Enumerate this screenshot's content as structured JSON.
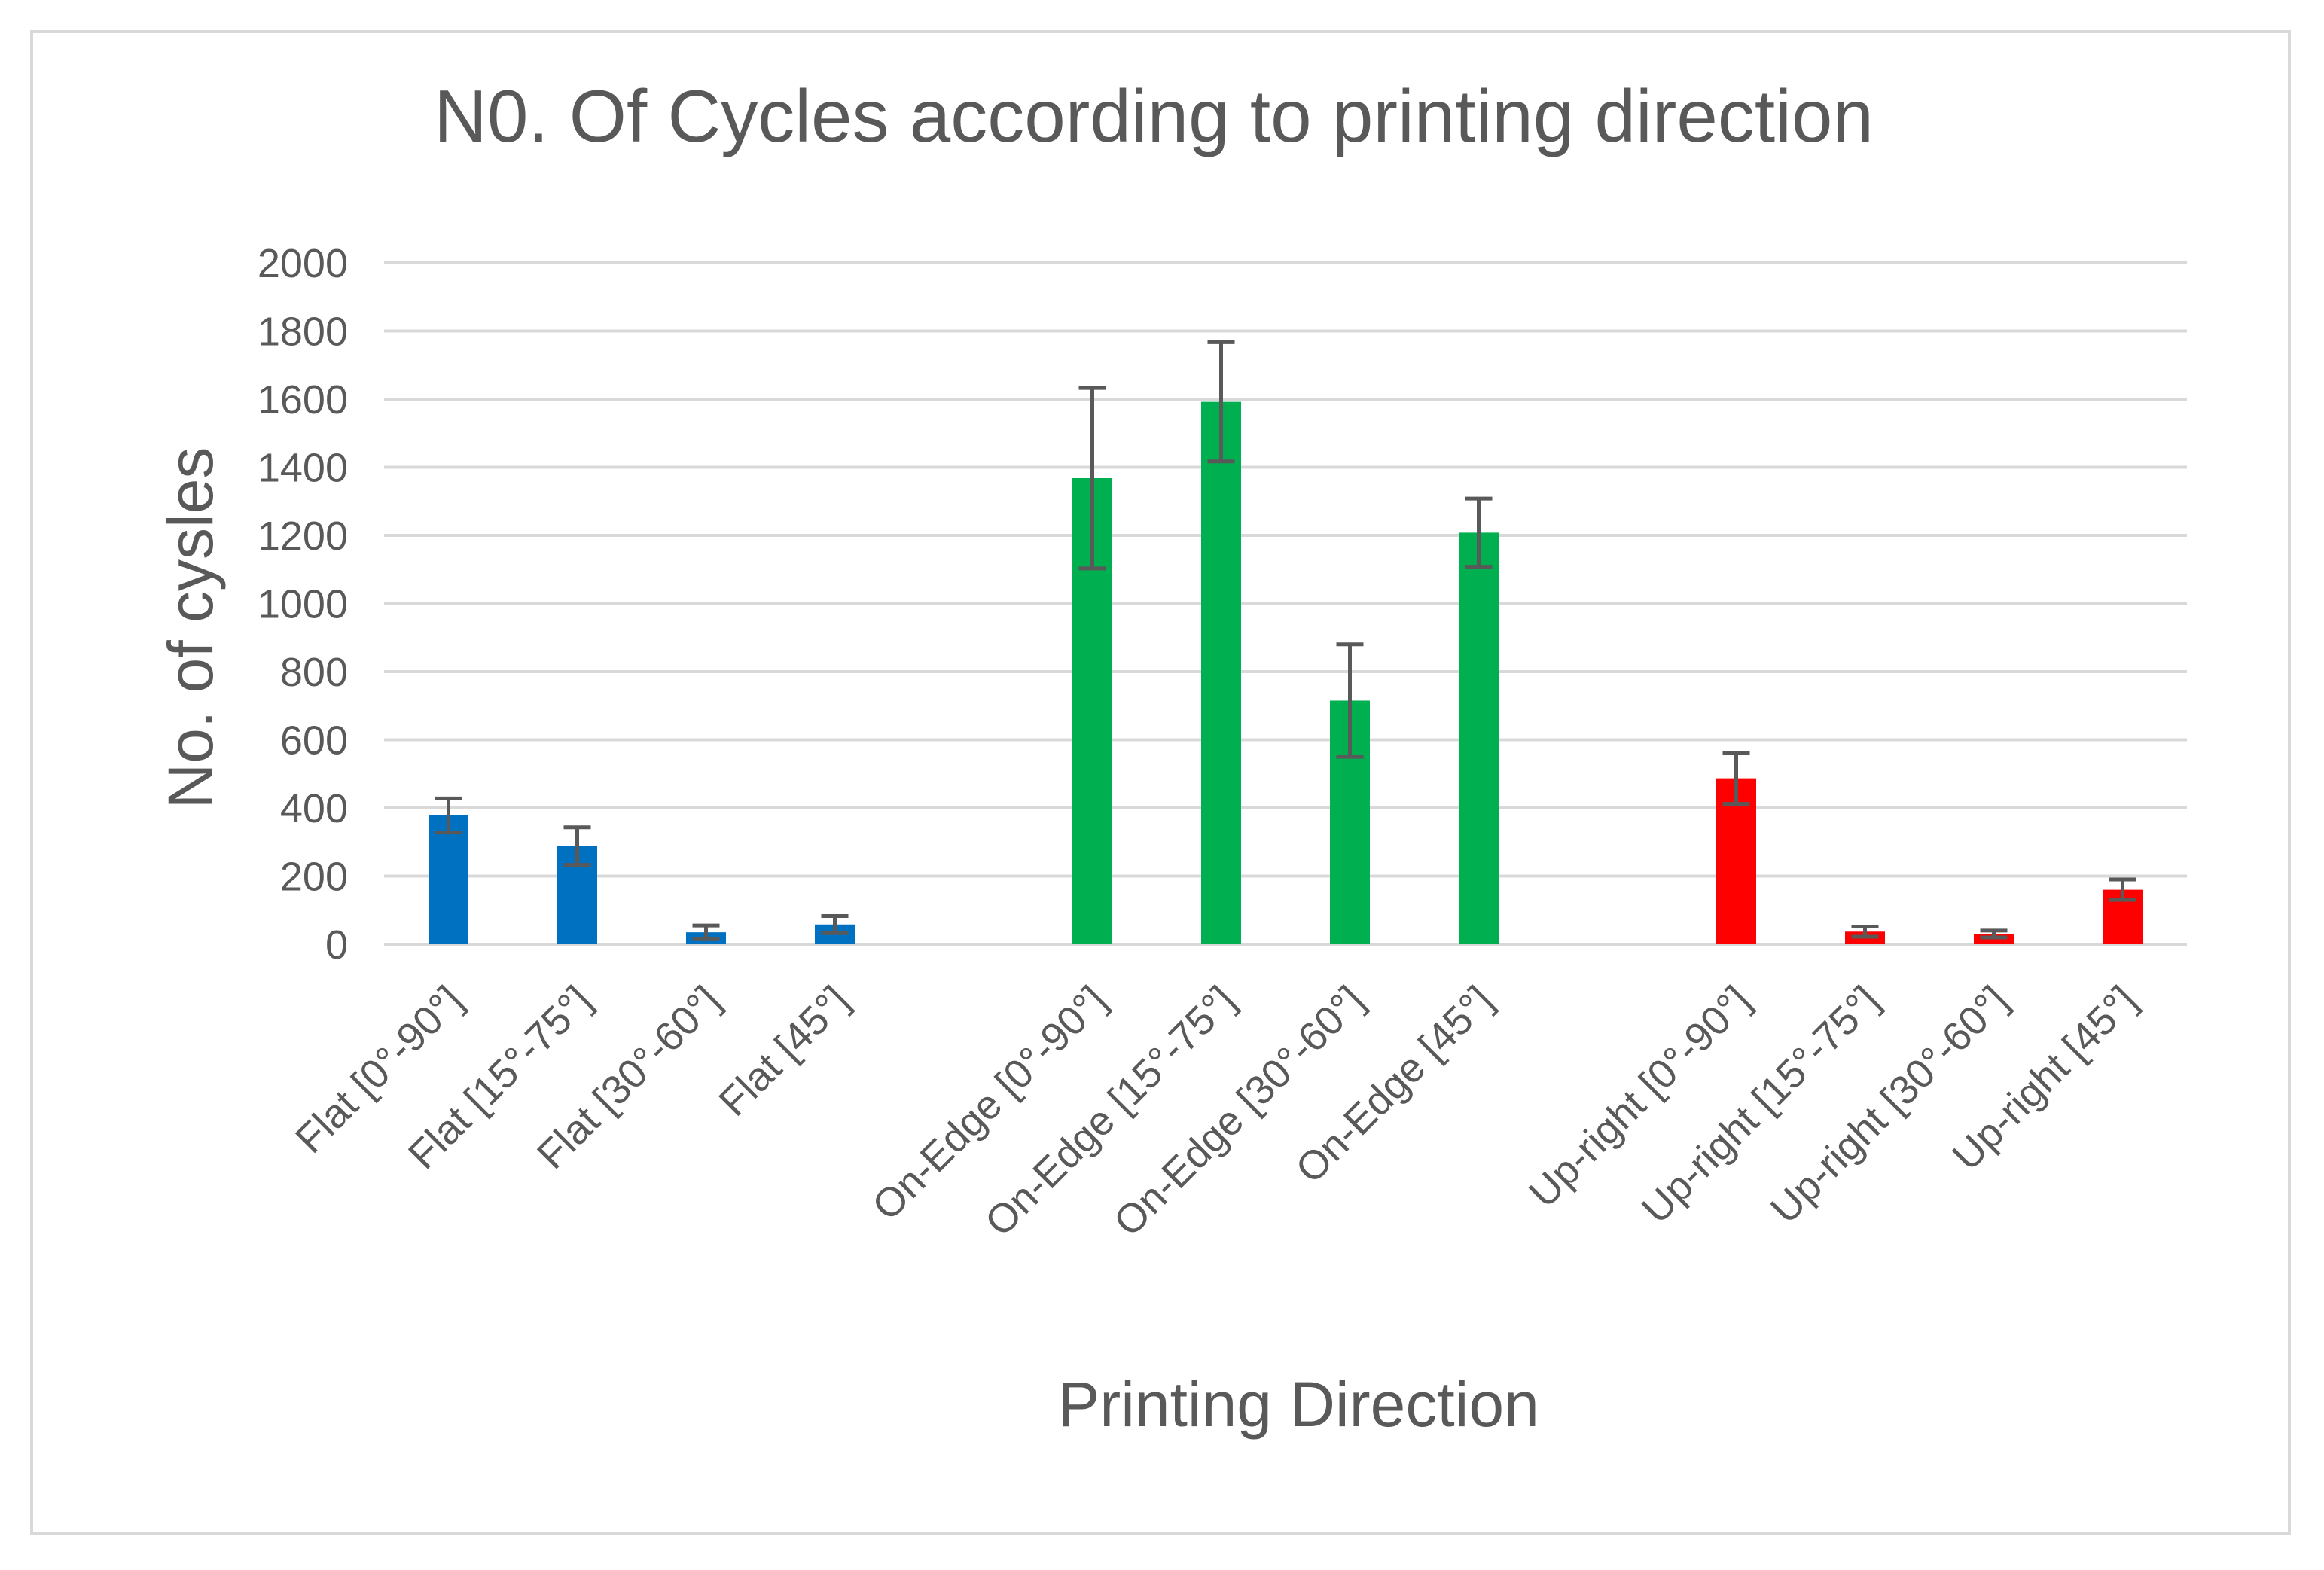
{
  "chart_data": {
    "type": "bar",
    "title": "N0. Of Cycles according to printing direction",
    "xlabel": "Printing Direction",
    "ylabel": "No. of cysles",
    "ylim": [
      0,
      2000
    ],
    "yticks": [
      0,
      200,
      400,
      600,
      800,
      1000,
      1200,
      1400,
      1600,
      1800,
      2000
    ],
    "grid": true,
    "legend": "none",
    "categories": [
      "Flat [0°-90°]",
      "Flat [15°-75°]",
      "Flat [30°-60°]",
      "Flat [45°]",
      "",
      "On-Edge [0°-90°]",
      "On-Edge [15°-75°]",
      "On-Edge [30°-60°]",
      "On-Edge [45°]",
      "",
      "Up-right [0°-90°]",
      "Up-right [15°-75°]",
      "Up-right [30°-60°]",
      "Up-right [45°]"
    ],
    "values": [
      378,
      288,
      35,
      58,
      0,
      1368,
      1592,
      715,
      1208,
      0,
      487,
      37,
      30,
      160
    ],
    "error": [
      50,
      55,
      20,
      25,
      0,
      265,
      175,
      165,
      100,
      0,
      75,
      15,
      10,
      30
    ],
    "colors": [
      "#0070C0",
      "#0070C0",
      "#0070C0",
      "#0070C0",
      "#0070C0",
      "#00B050",
      "#00B050",
      "#00B050",
      "#00B050",
      "#00B050",
      "#FF0000",
      "#FF0000",
      "#FF0000",
      "#FF0000"
    ],
    "gridline_color": "#d9d9d9",
    "errorbar_color": "#595959",
    "text_color": "#595959"
  }
}
